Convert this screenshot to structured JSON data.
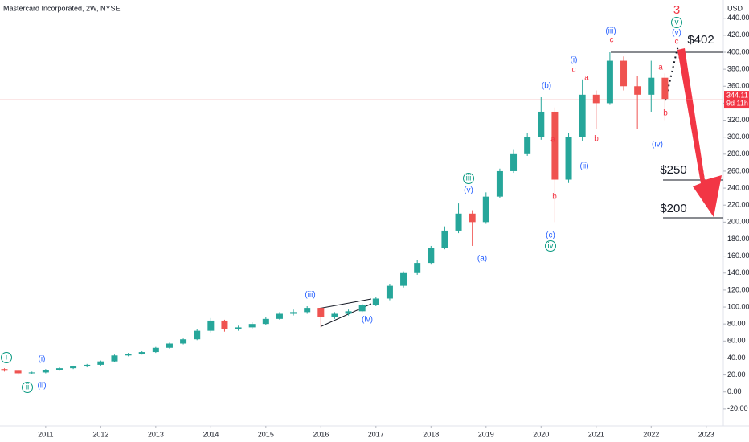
{
  "chart_data": {
    "type": "candlestick",
    "title": "Mastercard Incorporated, 2W, NYSE",
    "currency": "USD",
    "up_color": "#26a69a",
    "down_color": "#ef5350",
    "x": [
      2010.25,
      2010.5,
      2010.75,
      2011,
      2011.25,
      2011.5,
      2011.75,
      2012,
      2012.25,
      2012.5,
      2012.75,
      2013,
      2013.25,
      2013.5,
      2013.75,
      2014,
      2014.25,
      2014.5,
      2014.75,
      2015,
      2015.25,
      2015.5,
      2015.75,
      2016,
      2016.25,
      2016.5,
      2016.75,
      2017,
      2017.25,
      2017.5,
      2017.75,
      2018,
      2018.25,
      2018.5,
      2018.75,
      2019,
      2019.25,
      2019.5,
      2019.75,
      2020,
      2020.25,
      2020.5,
      2020.75,
      2021,
      2021.25,
      2021.5,
      2021.75,
      2022,
      2022.25
    ],
    "open": [
      27,
      25,
      22,
      23,
      26,
      28,
      30,
      32,
      36,
      43,
      45,
      47,
      52,
      57,
      62,
      72,
      84,
      74,
      76,
      80,
      86,
      92,
      94,
      99,
      88,
      92,
      95,
      102,
      110,
      125,
      140,
      152,
      170,
      190,
      210,
      200,
      230,
      260,
      280,
      300,
      330,
      250,
      300,
      350,
      340,
      390,
      360,
      350,
      370
    ],
    "high": [
      28,
      26,
      24,
      27,
      29,
      31,
      33,
      37,
      44,
      46,
      48,
      53,
      58,
      63,
      74,
      87,
      85,
      78,
      82,
      88,
      94,
      97,
      101,
      100,
      94,
      97,
      104,
      112,
      127,
      142,
      155,
      172,
      195,
      222,
      214,
      235,
      263,
      285,
      305,
      347,
      335,
      305,
      368,
      355,
      400,
      395,
      372,
      390,
      375
    ],
    "low": [
      24,
      20,
      21,
      22,
      25,
      27,
      29,
      31,
      35,
      42,
      44,
      46,
      51,
      56,
      61,
      70,
      71,
      72,
      74,
      79,
      85,
      90,
      92,
      76,
      86,
      90,
      94,
      101,
      108,
      123,
      138,
      150,
      168,
      187,
      172,
      198,
      228,
      258,
      278,
      297,
      200,
      246,
      295,
      310,
      338,
      355,
      310,
      330,
      320
    ],
    "close": [
      25,
      22,
      23,
      26,
      28,
      30,
      32,
      36,
      43,
      45,
      47,
      52,
      57,
      62,
      72,
      84,
      74,
      76,
      80,
      86,
      92,
      94,
      99,
      88,
      92,
      95,
      102,
      110,
      125,
      140,
      152,
      170,
      190,
      210,
      200,
      230,
      260,
      280,
      300,
      330,
      250,
      300,
      350,
      340,
      390,
      360,
      350,
      370,
      345
    ],
    "xlim": [
      2010.17,
      2023.31
    ],
    "xticks": [
      2011,
      2012,
      2013,
      2014,
      2015,
      2016,
      2017,
      2018,
      2019,
      2020,
      2021,
      2022,
      2023
    ],
    "ylim": [
      -40,
      461.5
    ],
    "yticks": [
      {
        "value": -20,
        "label": "-20.00"
      },
      {
        "value": 0,
        "label": "0.00"
      },
      {
        "value": 20,
        "label": "20.00"
      },
      {
        "value": 40,
        "label": "40.00"
      },
      {
        "value": 60,
        "label": "60.00"
      },
      {
        "value": 80,
        "label": "80.00"
      },
      {
        "value": 100,
        "label": "100.00"
      },
      {
        "value": 120,
        "label": "120.00"
      },
      {
        "value": 140,
        "label": "140.00"
      },
      {
        "value": 160,
        "label": "160.00"
      },
      {
        "value": 180,
        "label": "180.00"
      },
      {
        "value": 200,
        "label": "200.00"
      },
      {
        "value": 220,
        "label": "220.00"
      },
      {
        "value": 240,
        "label": "240.00"
      },
      {
        "value": 260,
        "label": "260.00"
      },
      {
        "value": 280,
        "label": "280.00"
      },
      {
        "value": 300,
        "label": "300.00"
      },
      {
        "value": 320,
        "label": "320.00"
      },
      {
        "value": 340,
        "label": "340.00"
      },
      {
        "value": 360,
        "label": "360.00"
      },
      {
        "value": 380,
        "label": "380.00"
      },
      {
        "value": 400,
        "label": "400.00"
      },
      {
        "value": 420,
        "label": "420.00"
      },
      {
        "value": 440,
        "label": "440.00"
      }
    ],
    "last_price": {
      "value": 344.11,
      "label": "344.11"
    },
    "countdown": "9d 11h",
    "annotations": [
      "i",
      "ii",
      "(i)",
      "(ii)",
      "(iii)",
      "(iv)",
      "iii",
      "(v)",
      "(a)",
      "(b)",
      "a",
      "b",
      "(c)",
      "iv",
      "(i)",
      "c",
      "a",
      "(ii)",
      "b",
      "(iii)",
      "c",
      "a",
      "b",
      "(iv)",
      "3",
      "v",
      "(v)",
      "c",
      "$402",
      "$250",
      "$200"
    ]
  }
}
